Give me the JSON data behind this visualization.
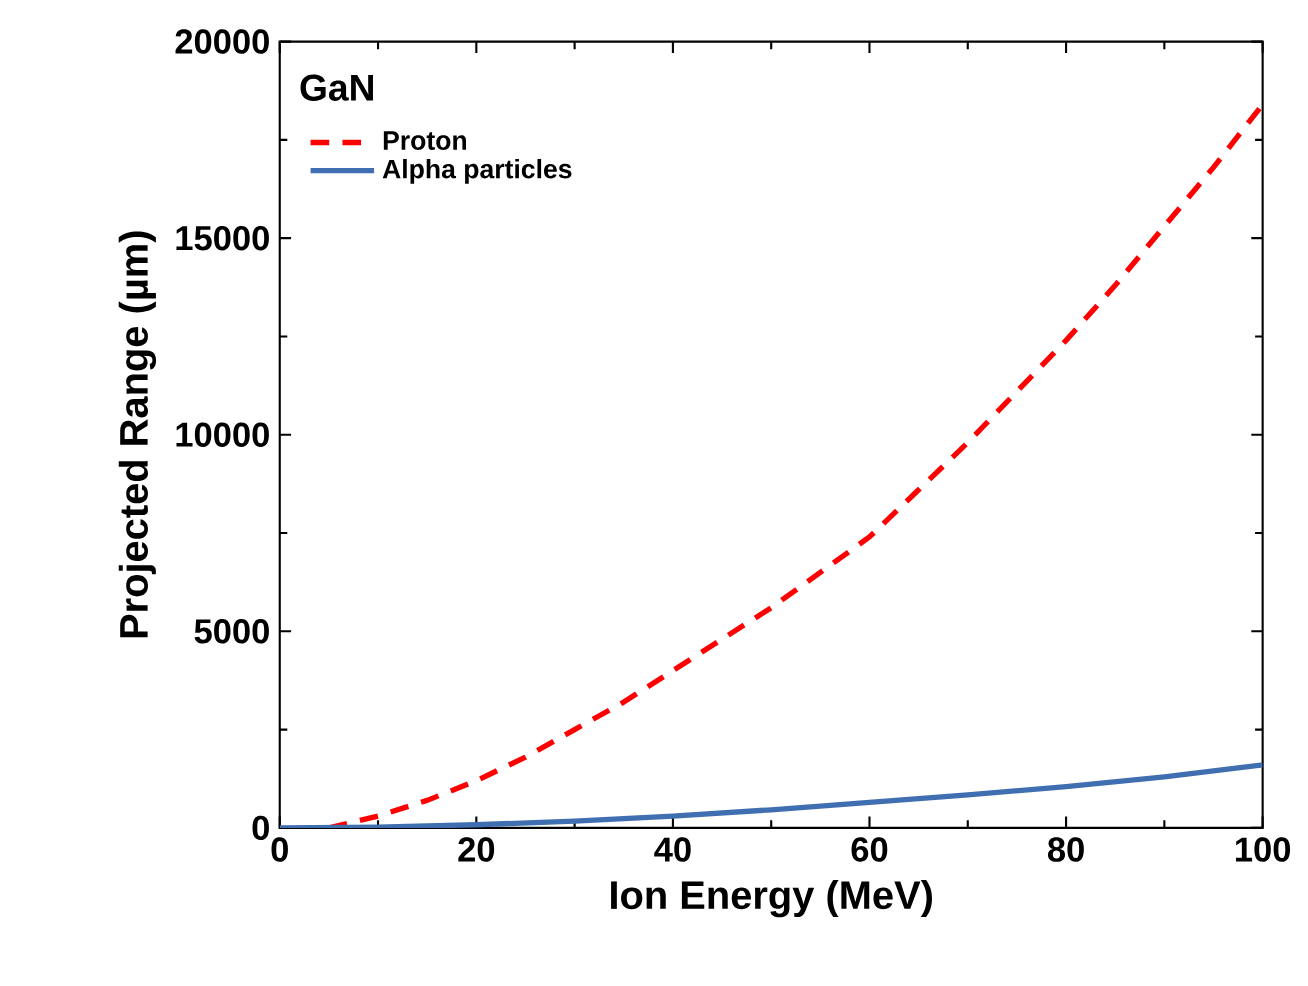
{
  "chart_data": {
    "type": "line",
    "xlabel": "Ion Energy (MeV)",
    "ylabel": "Projected Range (µm)",
    "legend_title": "GaN",
    "legend": "top left",
    "grid": false,
    "xlim": [
      0,
      100
    ],
    "ylim": [
      0,
      20000
    ],
    "xticks": [
      0,
      20,
      40,
      60,
      80,
      100
    ],
    "yticks": [
      0,
      5000,
      10000,
      15000,
      20000
    ],
    "series": [
      {
        "name": "Proton",
        "color": "#ff0000",
        "line_style": "dashed",
        "x": [
          5,
          10,
          15,
          20,
          25,
          30,
          35,
          40,
          45,
          50,
          55,
          60,
          65,
          70,
          75,
          80,
          85,
          90,
          95,
          100
        ],
        "values": [
          0,
          300,
          700,
          1200,
          1800,
          2500,
          3200,
          4000,
          4800,
          5600,
          6500,
          7400,
          8600,
          9800,
          11100,
          12400,
          13800,
          15300,
          16800,
          18400
        ]
      },
      {
        "name": "Alpha particles",
        "color": "#3f6fb0",
        "line_style": "solid",
        "x": [
          0,
          10,
          20,
          30,
          40,
          50,
          60,
          70,
          80,
          90,
          100
        ],
        "values": [
          0,
          20,
          80,
          170,
          300,
          460,
          650,
          840,
          1050,
          1300,
          1600
        ]
      }
    ]
  }
}
